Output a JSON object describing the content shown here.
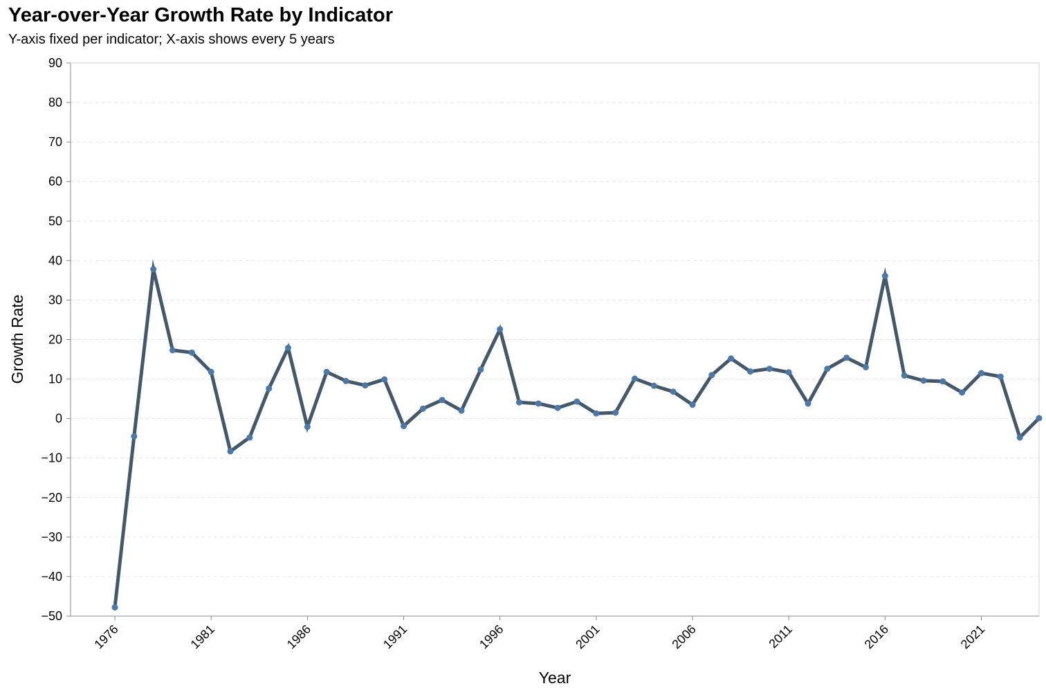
{
  "chart_data": {
    "type": "line",
    "title": "Year-over-Year Growth Rate by Indicator",
    "subtitle": "Y-axis fixed per indicator; X-axis shows every 5 years",
    "xlabel": "Year",
    "ylabel": "Growth Rate",
    "ylim": [
      -50,
      90
    ],
    "xlim": [
      1976,
      2024
    ],
    "yticks": [
      -50,
      -40,
      -30,
      -20,
      -10,
      0,
      10,
      20,
      30,
      40,
      50,
      60,
      70,
      80,
      90
    ],
    "xticks": [
      1976,
      1981,
      1986,
      1991,
      1996,
      2001,
      2006,
      2011,
      2016,
      2021
    ],
    "grid": true,
    "colors": {
      "line": "#44586a",
      "point": "#4c78a8"
    },
    "x": [
      1976,
      1977,
      1978,
      1979,
      1980,
      1981,
      1982,
      1983,
      1984,
      1985,
      1986,
      1987,
      1988,
      1989,
      1990,
      1991,
      1992,
      1993,
      1994,
      1995,
      1996,
      1997,
      1998,
      1999,
      2000,
      2001,
      2002,
      2003,
      2004,
      2005,
      2006,
      2007,
      2008,
      2009,
      2010,
      2011,
      2012,
      2013,
      2014,
      2015,
      2016,
      2017,
      2018,
      2019,
      2020,
      2021,
      2022,
      2023,
      2024
    ],
    "values": [
      -47.8,
      -4.5,
      37.8,
      17.3,
      16.7,
      11.8,
      -8.3,
      -4.8,
      7.6,
      17.9,
      -2.1,
      11.8,
      9.5,
      8.4,
      9.9,
      -1.9,
      2.5,
      4.7,
      2.0,
      12.4,
      22.6,
      4.1,
      3.8,
      2.7,
      4.3,
      1.3,
      1.5,
      10.1,
      8.3,
      6.8,
      3.5,
      11.0,
      15.2,
      11.9,
      12.6,
      11.7,
      3.8,
      12.6,
      15.4,
      13.0,
      36.1,
      10.9,
      9.6,
      9.4,
      6.6,
      11.5,
      10.6,
      -4.8,
      0.1
    ]
  }
}
